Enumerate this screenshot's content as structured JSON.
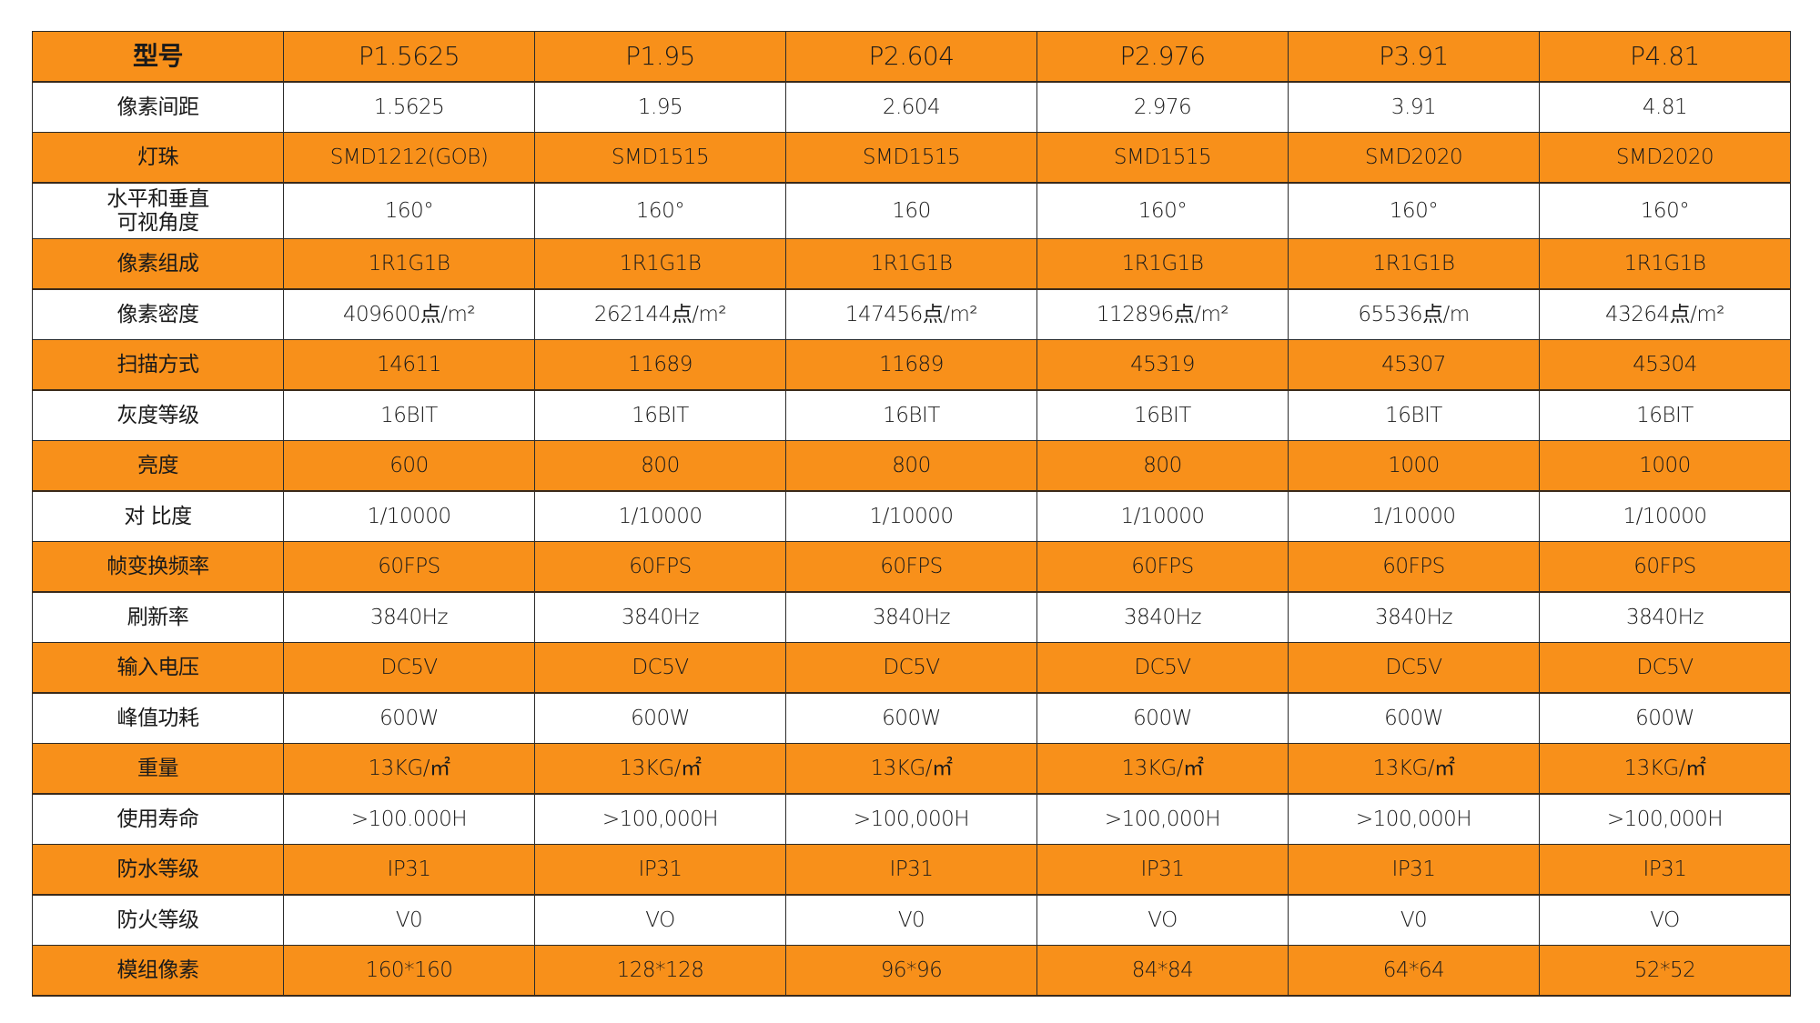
{
  "colors": {
    "orange": "#F8901A",
    "white": "#FFFFFF",
    "border": "#2B2B2B"
  },
  "header": {
    "label": "型号",
    "models": [
      "P1.5625",
      "P1.95",
      "P2.604",
      "P2.976",
      "P3.91",
      "P4.81"
    ]
  },
  "rows": [
    {
      "label": "像素间距",
      "values": [
        "1.5625",
        "1.95",
        "2.604",
        "2.976",
        "3.91",
        "4.81"
      ]
    },
    {
      "label": "灯珠",
      "values": [
        "SMD1212(GOB)",
        "SMD1515",
        "SMD1515",
        "SMD1515",
        "SMD2020",
        "SMD2020"
      ]
    },
    {
      "label": "水平和垂直\n可视角度",
      "values": [
        "160°",
        "160°",
        "160",
        "160°",
        "160°",
        "160°"
      ]
    },
    {
      "label": "像素组成",
      "values": [
        "1R1G1B",
        "1R1G1B",
        "1R1G1B",
        "1R1G1B",
        "1R1G1B",
        "1R1G1B"
      ]
    },
    {
      "label": "像素密度",
      "values": [
        "409600点/m²",
        "262144点/m²",
        "147456点/m²",
        "112896点/m²",
        "65536点/m",
        "43264点/m²"
      ]
    },
    {
      "label": "扫描方式",
      "values": [
        "14611",
        "11689",
        "11689",
        "45319",
        "45307",
        "45304"
      ]
    },
    {
      "label": "灰度等级",
      "values": [
        "16BIT",
        "16BIT",
        "16BIT",
        "16BIT",
        "16BIT",
        "16BIT"
      ]
    },
    {
      "label": "亮度",
      "values": [
        "600",
        "800",
        "800",
        "800",
        "1000",
        "1000"
      ]
    },
    {
      "label": "对 比度",
      "values": [
        "1/10000",
        "1/10000",
        "1/10000",
        "1/10000",
        "1/10000",
        "1/10000"
      ]
    },
    {
      "label": "帧变换频率",
      "values": [
        "60FPS",
        "60FPS",
        "60FPS",
        "60FPS",
        "60FPS",
        "60FPS"
      ]
    },
    {
      "label": "刷新率",
      "values": [
        "3840Hz",
        "3840Hz",
        "3840Hz",
        "3840Hz",
        "3840Hz",
        "3840Hz"
      ]
    },
    {
      "label": "输入电压",
      "values": [
        "DC5V",
        "DC5V",
        "DC5V",
        "DC5V",
        "DC5V",
        "DC5V"
      ]
    },
    {
      "label": "峰值功耗",
      "values": [
        "600W",
        "600W",
        "600W",
        "600W",
        "600W",
        "600W"
      ]
    },
    {
      "label": "重量",
      "values": [
        "13KG/㎡",
        "13KG/㎡",
        "13KG/㎡",
        "13KG/㎡",
        "13KG/㎡",
        "13KG/㎡"
      ]
    },
    {
      "label": "使用寿命",
      "values": [
        ">100.000H",
        ">100,000H",
        ">100,000H",
        ">100,000H",
        ">100,000H",
        ">100,000H"
      ]
    },
    {
      "label": "防水等级",
      "values": [
        "IP31",
        "IP31",
        "IP31",
        "IP31",
        "IP31",
        "IP31"
      ]
    },
    {
      "label": "防火等级",
      "values": [
        "V0",
        "VO",
        "V0",
        "VO",
        "V0",
        "VO"
      ]
    },
    {
      "label": "模组像素",
      "values": [
        "160*160",
        "128*128",
        "96*96",
        "84*84",
        "64*64",
        "52*52"
      ]
    }
  ]
}
